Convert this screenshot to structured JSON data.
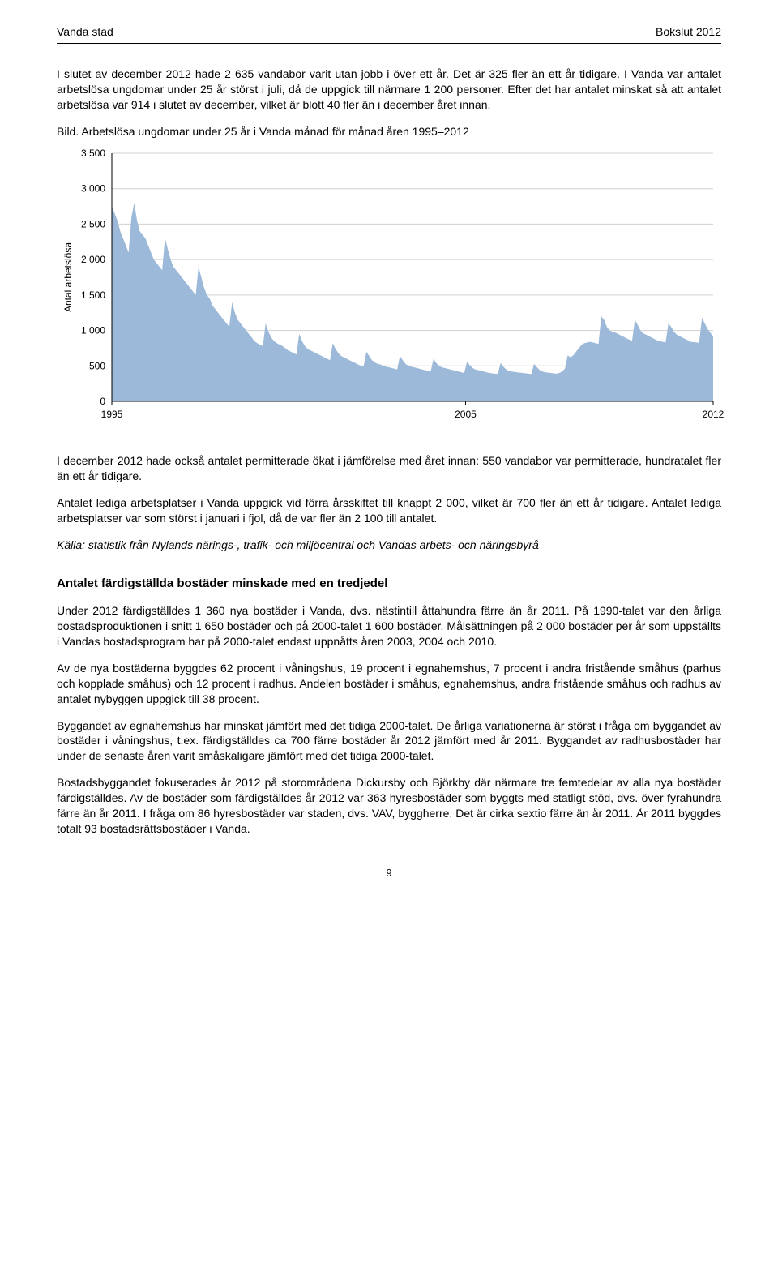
{
  "header": {
    "left": "Vanda stad",
    "right": "Bokslut 2012"
  },
  "p1": "I slutet av december 2012 hade 2 635 vandabor varit utan jobb i över ett år. Det är 325 fler än ett år tidigare. I Vanda var antalet arbetslösa ungdomar under 25 år störst i juli, då de uppgick till närmare 1 200 personer. Efter det har antalet minskat så att antalet arbetslösa var 914 i slutet av december, vilket är blott 40 fler än i december året innan.",
  "chart_caption": "Bild. Arbetslösa ungdomar under 25 år i Vanda månad för månad åren 1995–2012",
  "chart": {
    "type": "area",
    "y_label": "Antal arbetslösa",
    "y_ticks": [
      0,
      500,
      1000,
      1500,
      2000,
      2500,
      3000,
      3500
    ],
    "y_tick_labels": [
      "0",
      "500",
      "1 000",
      "1 500",
      "2 000",
      "2 500",
      "3 000",
      "3 500"
    ],
    "ylim": [
      0,
      3500
    ],
    "x_start": 1995,
    "x_end": 2012,
    "x_tick_years": [
      1995,
      2005,
      2012
    ],
    "colors": {
      "fill": "#9db9d9",
      "grid": "#d0d0d0",
      "axis": "#000000",
      "text": "#000000",
      "bg": "#ffffff"
    },
    "font_size_axis": 12,
    "font_size_ylabel": 12,
    "values": [
      2750,
      2650,
      2550,
      2400,
      2300,
      2200,
      2100,
      2600,
      2800,
      2550,
      2400,
      2350,
      2300,
      2200,
      2100,
      2000,
      1950,
      1900,
      1850,
      2300,
      2150,
      2000,
      1900,
      1850,
      1800,
      1750,
      1700,
      1650,
      1600,
      1550,
      1500,
      1900,
      1750,
      1600,
      1500,
      1450,
      1350,
      1300,
      1250,
      1200,
      1150,
      1100,
      1050,
      1400,
      1250,
      1150,
      1100,
      1050,
      1000,
      950,
      900,
      850,
      820,
      800,
      780,
      1100,
      980,
      900,
      850,
      820,
      800,
      780,
      750,
      720,
      700,
      680,
      660,
      950,
      850,
      780,
      740,
      720,
      700,
      680,
      660,
      640,
      620,
      600,
      580,
      820,
      740,
      680,
      640,
      620,
      600,
      580,
      560,
      540,
      520,
      500,
      490,
      700,
      640,
      580,
      550,
      530,
      520,
      500,
      490,
      480,
      470,
      460,
      450,
      640,
      580,
      530,
      500,
      490,
      480,
      470,
      460,
      450,
      440,
      430,
      420,
      600,
      540,
      500,
      480,
      470,
      460,
      450,
      440,
      430,
      420,
      410,
      400,
      560,
      510,
      470,
      450,
      440,
      430,
      420,
      410,
      400,
      395,
      390,
      385,
      540,
      490,
      450,
      430,
      420,
      415,
      410,
      405,
      400,
      395,
      390,
      385,
      530,
      480,
      440,
      420,
      410,
      405,
      400,
      395,
      390,
      400,
      420,
      460,
      650,
      620,
      650,
      700,
      750,
      800,
      820,
      830,
      840,
      830,
      820,
      810,
      1200,
      1150,
      1050,
      1000,
      980,
      970,
      950,
      930,
      910,
      890,
      870,
      850,
      1150,
      1080,
      1000,
      960,
      940,
      920,
      900,
      880,
      860,
      850,
      840,
      830,
      1100,
      1050,
      980,
      940,
      920,
      900,
      880,
      860,
      840,
      835,
      830,
      825,
      1180,
      1100,
      1020,
      970,
      914
    ]
  },
  "p2": "I december 2012 hade också antalet permitterade ökat i jämförelse med året innan: 550 vandabor var permitterade, hundratalet fler än ett år tidigare.",
  "p3": "Antalet lediga arbetsplatser i Vanda uppgick vid förra årsskiftet till knappt 2 000, vilket är 700 fler än ett år tidigare. Antalet lediga arbetsplatser var som störst i januari i fjol, då de var fler än 2 100 till antalet.",
  "source": "Källa: statistik från Nylands närings-, trafik- och miljöcentral och Vandas arbets- och näringsbyrå",
  "h2": "Antalet färdigställda bostäder minskade med en tredjedel",
  "p4": "Under 2012 färdigställdes 1 360 nya bostäder i Vanda, dvs. nästintill åttahundra färre än år 2011. På 1990-talet var den årliga bostadsproduktionen i snitt 1 650 bostäder och på 2000-talet 1 600 bostäder. Målsättningen på 2 000 bostäder per år som uppställts i Vandas bostadsprogram har på 2000-talet endast uppnåtts åren 2003, 2004 och 2010.",
  "p5": "Av de nya bostäderna byggdes 62 procent i våningshus, 19 procent i egnahemshus, 7 procent i andra fristående småhus (parhus och kopplade småhus) och 12 procent i radhus. Andelen bostäder i småhus, egnahemshus, andra fristående småhus och radhus av antalet nybyggen uppgick till 38 procent.",
  "p6": "Byggandet av egnahemshus har minskat jämfört med det tidiga 2000-talet. De årliga variationerna är störst i fråga om byggandet av bostäder i våningshus, t.ex. färdigställdes ca 700 färre bostäder år 2012 jämfört med år 2011. Byggandet av radhusbostäder har under de senaste åren varit småskaligare jämfört med det tidiga 2000-talet.",
  "p7": "Bostadsbyggandet fokuserades år 2012 på storområdena Dickursby och Björkby där närmare tre femtedelar av alla nya bostäder färdigställdes. Av de bostäder som färdigställdes år 2012 var 363 hyresbostäder som byggts med statligt stöd, dvs. över fyrahundra färre än år 2011. I fråga om 86 hyresbostäder var staden, dvs. VAV, byggherre. Det är cirka sextio färre än år 2011. År 2011 byggdes totalt 93 bostadsrättsbostäder i Vanda.",
  "page_number": "9"
}
